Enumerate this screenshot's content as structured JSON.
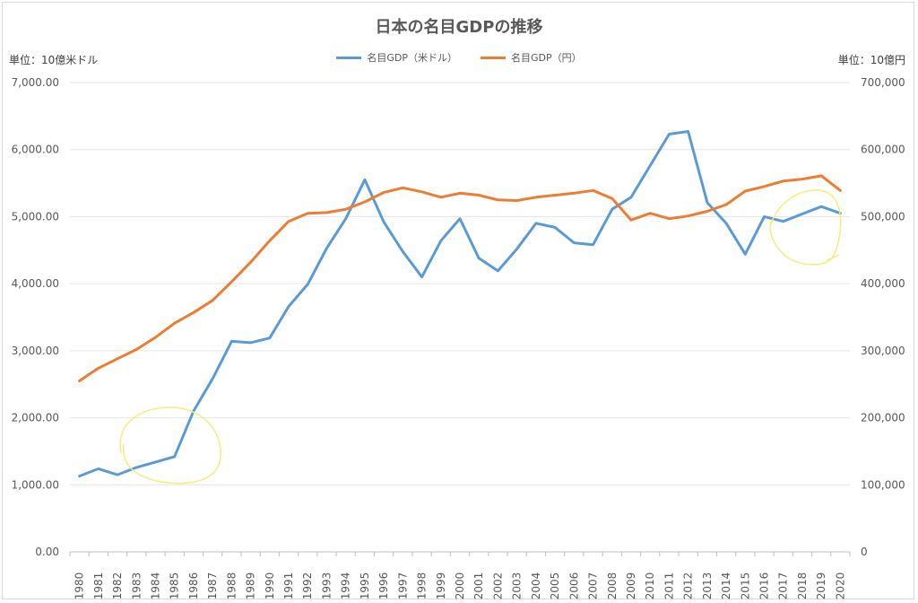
{
  "chart_data": {
    "type": "line",
    "title": "日本の名目GDPの推移",
    "left_unit_label": "単位：10億米ドル",
    "right_unit_label": "単位：10億円",
    "x": [
      "1980",
      "1981",
      "1982",
      "1983",
      "1984",
      "1985",
      "1986",
      "1987",
      "1988",
      "1989",
      "1990",
      "1991",
      "1992",
      "1993",
      "1994",
      "1995",
      "1996",
      "1997",
      "1998",
      "1999",
      "2000",
      "2001",
      "2002",
      "2003",
      "2004",
      "2005",
      "2006",
      "2007",
      "2008",
      "2009",
      "2010",
      "2011",
      "2012",
      "2013",
      "2014",
      "2015",
      "2016",
      "2017",
      "2018",
      "2019",
      "2020"
    ],
    "left_axis": {
      "ylim": [
        0,
        7000
      ],
      "ticks": [
        "0.00",
        "1,000.00",
        "2,000.00",
        "3,000.00",
        "4,000.00",
        "5,000.00",
        "6,000.00",
        "7,000.00"
      ]
    },
    "right_axis": {
      "ylim": [
        0,
        700000
      ],
      "ticks": [
        "0",
        "100,000",
        "200,000",
        "300,000",
        "400,000",
        "500,000",
        "600,000",
        "700,000"
      ]
    },
    "series": [
      {
        "name": "名目GDP（米ドル）",
        "axis": "left",
        "color": "#5b9bd5",
        "values": [
          1130,
          1240,
          1150,
          1260,
          1340,
          1420,
          2100,
          2580,
          3140,
          3120,
          3190,
          3660,
          3990,
          4530,
          4970,
          5550,
          4920,
          4480,
          4100,
          4640,
          4970,
          4380,
          4190,
          4520,
          4900,
          4840,
          4610,
          4580,
          5110,
          5290,
          5760,
          6230,
          6270,
          5210,
          4900,
          4440,
          5000,
          4930,
          5040,
          5150,
          5050
        ]
      },
      {
        "name": "名目GDP（円）",
        "axis": "right",
        "color": "#ed7d31",
        "values": [
          255000,
          274000,
          288000,
          302000,
          320000,
          341000,
          357000,
          375000,
          403000,
          432000,
          464000,
          493000,
          505000,
          506000,
          511000,
          522000,
          536000,
          543000,
          537000,
          529000,
          535000,
          532000,
          525000,
          524000,
          529000,
          532000,
          535000,
          539000,
          527000,
          495000,
          505000,
          497000,
          501000,
          508000,
          518000,
          538000,
          545000,
          553000,
          556000,
          561000,
          539000
        ]
      }
    ],
    "grid": true,
    "legend_position": "top-center",
    "annotations": [
      "hand-drawn yellow circle around 1983–1986",
      "hand-drawn yellow circle around 2016–2020"
    ]
  }
}
